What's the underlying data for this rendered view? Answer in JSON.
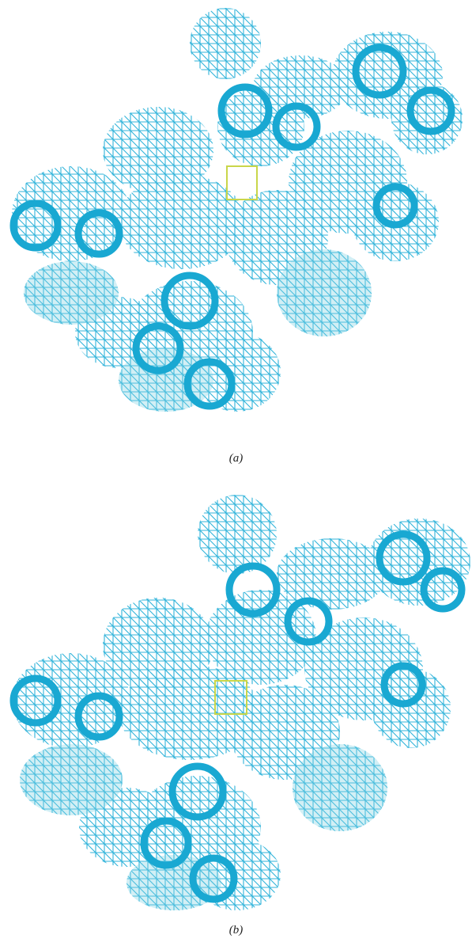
{
  "figure": {
    "panels": [
      {
        "label": "(a)"
      },
      {
        "label": "(b)"
      }
    ],
    "colors": {
      "mesh_dark": "#19a8d2",
      "mesh_light": "#7fd0e3",
      "mesh_line": "#2fb3da",
      "highlight_box": "#c9d64a",
      "background": "#ffffff"
    }
  }
}
